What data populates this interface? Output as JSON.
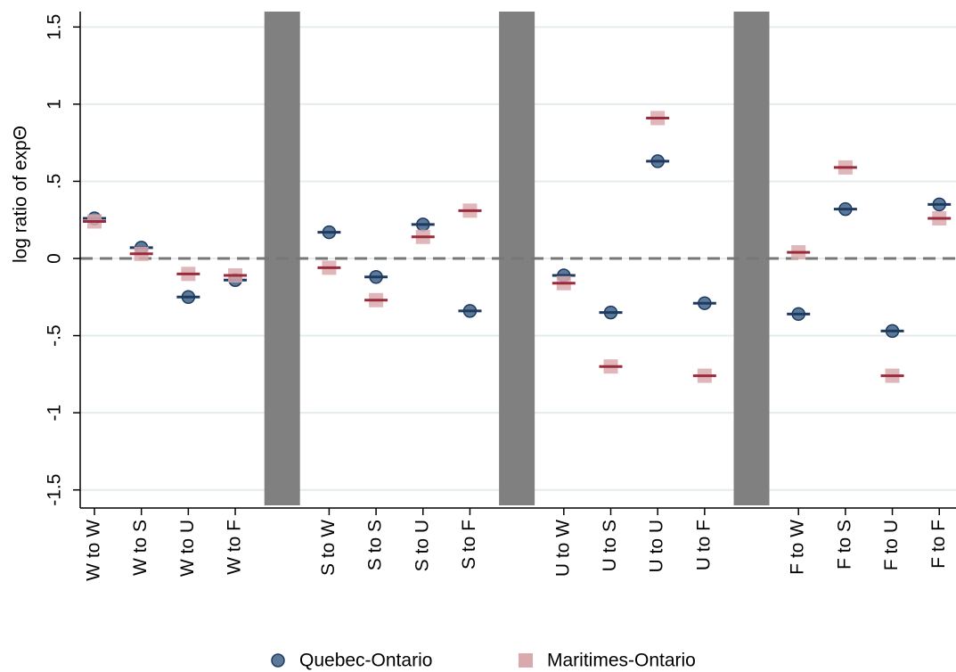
{
  "chart_data": {
    "type": "scatter",
    "y_label": "log ratio of expΘ",
    "categories": [
      "W to W",
      "W to S",
      "W to U",
      "W to F",
      null,
      "S to W",
      "S to S",
      "S to U",
      "S to F",
      null,
      "U to W",
      "U to S",
      "U to U",
      "U to F",
      null,
      "F to W",
      "F to S",
      "F to U",
      "F to F"
    ],
    "series": [
      {
        "name": "Quebec-Ontario",
        "color": "#5b7a99",
        "line_color": "#1f3a60",
        "marker": "circle",
        "values": [
          0.26,
          0.07,
          -0.25,
          -0.14,
          null,
          0.17,
          -0.12,
          0.22,
          -0.34,
          null,
          -0.11,
          -0.35,
          0.63,
          -0.29,
          null,
          -0.36,
          0.32,
          -0.47,
          0.35
        ]
      },
      {
        "name": "Maritimes-Ontario",
        "color": "#d9a9ae",
        "line_color": "#9b2a3a",
        "marker": "square",
        "values": [
          0.24,
          0.03,
          -0.1,
          -0.11,
          null,
          -0.06,
          -0.27,
          0.14,
          0.31,
          null,
          -0.16,
          -0.7,
          0.91,
          -0.76,
          null,
          0.04,
          0.59,
          -0.76,
          0.26
        ]
      }
    ],
    "ylim": [
      -1.6,
      1.6
    ],
    "yticks": [
      -1.5,
      -1,
      {
        "value": -0.5,
        "label": "-.5"
      },
      0,
      {
        "value": 0.5,
        "label": ".5"
      },
      1,
      1.5
    ],
    "grid": true,
    "reference_line": 0,
    "legend": "bottom"
  }
}
